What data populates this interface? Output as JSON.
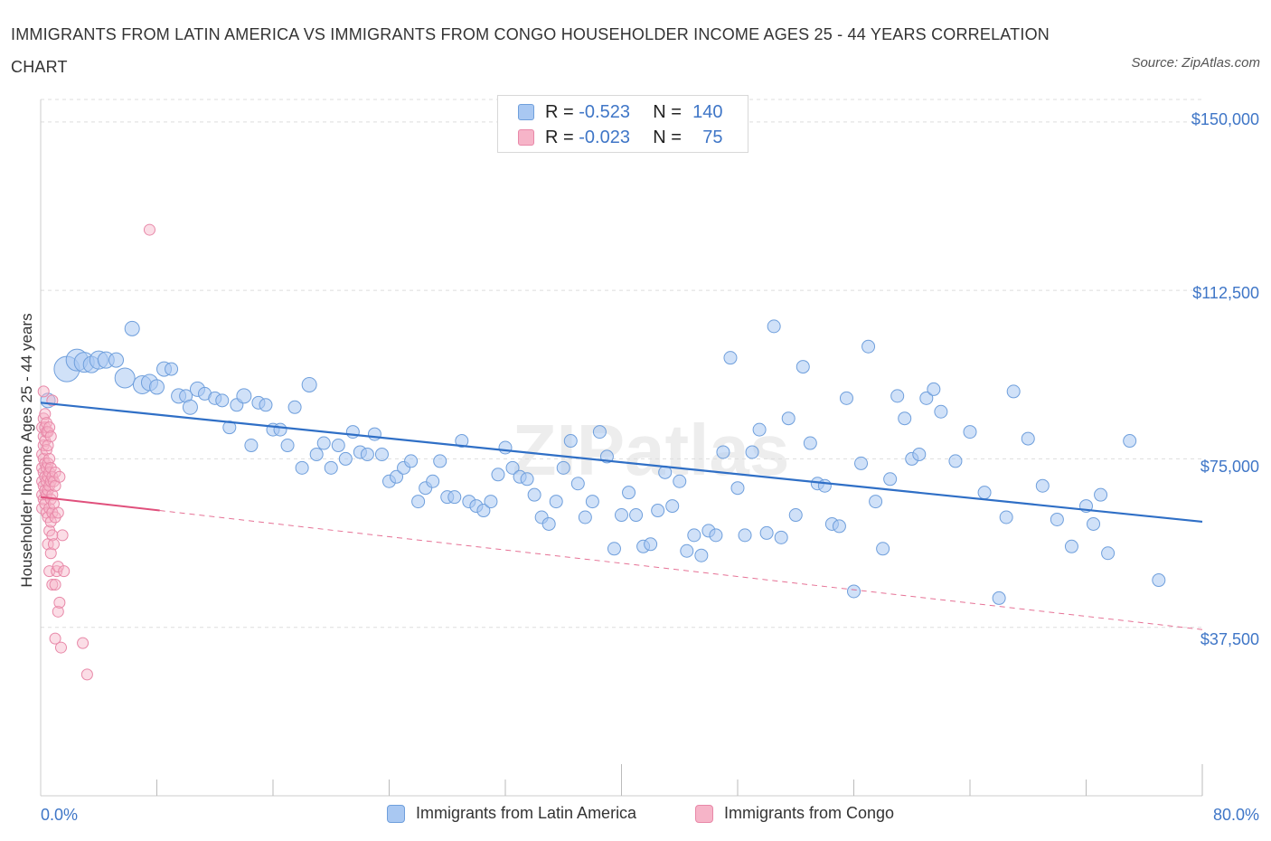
{
  "title": "IMMIGRANTS FROM LATIN AMERICA VS IMMIGRANTS FROM CONGO HOUSEHOLDER INCOME AGES 25 - 44 YEARS CORRELATION CHART",
  "source": "Source: ZipAtlas.com",
  "watermark": "ZIPatlas",
  "legend": [
    {
      "r_label": "R =",
      "r_value": "-0.523",
      "n_label": "N =",
      "n_value": "140"
    },
    {
      "r_label": "R =",
      "r_value": "-0.023",
      "n_label": "N =",
      "n_value": "75"
    }
  ],
  "colors": {
    "blue_fill": "#a9c8f2",
    "blue_stroke": "#6f9fdc",
    "blue_line": "#2f6fc6",
    "pink_fill": "#f6b4c8",
    "pink_stroke": "#e888a8",
    "pink_line": "#e0507c",
    "grid": "#dddddd",
    "tick_text": "#3f76c7"
  },
  "chart_data": {
    "type": "scatter",
    "title": "IMMIGRANTS FROM LATIN AMERICA VS IMMIGRANTS FROM CONGO HOUSEHOLDER INCOME AGES 25 - 44 YEARS CORRELATION CHART",
    "xlabel": "",
    "ylabel": "Householder Income Ages 25 - 44 years",
    "xlim": [
      0,
      80
    ],
    "ylim": [
      0,
      155000
    ],
    "x_tick_labels": [
      "0.0%",
      "80.0%"
    ],
    "y_ticks": [
      37500,
      75000,
      112500,
      150000
    ],
    "y_tick_labels": [
      "$37,500",
      "$75,000",
      "$112,500",
      "$150,000"
    ],
    "grid": "horizontal dashed",
    "legend_position": "bottom",
    "series": [
      {
        "name": "Immigrants from Latin America",
        "trend": {
          "x": [
            0,
            80
          ],
          "y": [
            87500,
            61000
          ],
          "style": "solid"
        },
        "points": [
          [
            0.5,
            88000,
            8
          ],
          [
            1.8,
            95000,
            14
          ],
          [
            2.5,
            97000,
            12
          ],
          [
            3.0,
            96500,
            11
          ],
          [
            3.5,
            96000,
            9
          ],
          [
            4.0,
            97000,
            10
          ],
          [
            4.5,
            97000,
            9
          ],
          [
            5.2,
            97000,
            8
          ],
          [
            5.8,
            93000,
            11
          ],
          [
            6.3,
            104000,
            8
          ],
          [
            7.0,
            91500,
            10
          ],
          [
            7.5,
            92000,
            9
          ],
          [
            8.0,
            91000,
            8
          ],
          [
            8.5,
            95000,
            8
          ],
          [
            9.0,
            95000,
            7
          ],
          [
            9.5,
            89000,
            8
          ],
          [
            10.0,
            89000,
            7
          ],
          [
            10.3,
            86500,
            8
          ],
          [
            10.8,
            90500,
            8
          ],
          [
            11.3,
            89500,
            7
          ],
          [
            12.0,
            88500,
            7
          ],
          [
            12.5,
            88000,
            7
          ],
          [
            13.0,
            82000,
            7
          ],
          [
            13.5,
            87000,
            7
          ],
          [
            14.0,
            89000,
            8
          ],
          [
            14.5,
            78000,
            7
          ],
          [
            15.0,
            87500,
            7
          ],
          [
            15.5,
            87000,
            7
          ],
          [
            16.0,
            81500,
            7
          ],
          [
            16.5,
            81500,
            7
          ],
          [
            17.0,
            78000,
            7
          ],
          [
            17.5,
            86500,
            7
          ],
          [
            18.0,
            73000,
            7
          ],
          [
            18.5,
            91500,
            8
          ],
          [
            19.0,
            76000,
            7
          ],
          [
            19.5,
            78500,
            7
          ],
          [
            20.0,
            73000,
            7
          ],
          [
            20.5,
            78000,
            7
          ],
          [
            21.0,
            75000,
            7
          ],
          [
            21.5,
            81000,
            7
          ],
          [
            22.0,
            76500,
            7
          ],
          [
            22.5,
            76000,
            7
          ],
          [
            23.0,
            80500,
            7
          ],
          [
            23.5,
            76000,
            7
          ],
          [
            24.0,
            70000,
            7
          ],
          [
            24.5,
            71000,
            7
          ],
          [
            25.0,
            73000,
            7
          ],
          [
            25.5,
            74500,
            7
          ],
          [
            26.0,
            65500,
            7
          ],
          [
            26.5,
            68500,
            7
          ],
          [
            27.0,
            70000,
            7
          ],
          [
            27.5,
            74500,
            7
          ],
          [
            28.0,
            66500,
            7
          ],
          [
            28.5,
            66500,
            7
          ],
          [
            29.0,
            79000,
            7
          ],
          [
            29.5,
            65500,
            7
          ],
          [
            30.0,
            64500,
            7
          ],
          [
            30.5,
            63500,
            7
          ],
          [
            31.0,
            65500,
            7
          ],
          [
            31.5,
            71500,
            7
          ],
          [
            32.0,
            77500,
            7
          ],
          [
            32.5,
            73000,
            7
          ],
          [
            33.0,
            71000,
            7
          ],
          [
            33.5,
            70500,
            7
          ],
          [
            34.0,
            67000,
            7
          ],
          [
            34.5,
            62000,
            7
          ],
          [
            35.0,
            60500,
            7
          ],
          [
            35.5,
            65500,
            7
          ],
          [
            36.0,
            73000,
            7
          ],
          [
            36.5,
            79000,
            7
          ],
          [
            37.0,
            69500,
            7
          ],
          [
            37.5,
            62000,
            7
          ],
          [
            38.0,
            65500,
            7
          ],
          [
            38.5,
            81000,
            7
          ],
          [
            39.0,
            75500,
            7
          ],
          [
            39.5,
            55000,
            7
          ],
          [
            40.0,
            62500,
            7
          ],
          [
            40.5,
            67500,
            7
          ],
          [
            41.0,
            62500,
            7
          ],
          [
            41.5,
            55500,
            7
          ],
          [
            42.0,
            56000,
            7
          ],
          [
            42.5,
            63500,
            7
          ],
          [
            43.0,
            72000,
            7
          ],
          [
            43.5,
            64500,
            7
          ],
          [
            44.0,
            70000,
            7
          ],
          [
            44.5,
            54500,
            7
          ],
          [
            45.0,
            58000,
            7
          ],
          [
            45.5,
            53500,
            7
          ],
          [
            46.0,
            59000,
            7
          ],
          [
            46.5,
            58000,
            7
          ],
          [
            47.0,
            76500,
            7
          ],
          [
            47.5,
            97500,
            7
          ],
          [
            48.0,
            68500,
            7
          ],
          [
            48.5,
            58000,
            7
          ],
          [
            49.0,
            76500,
            7
          ],
          [
            49.5,
            81500,
            7
          ],
          [
            50.0,
            58500,
            7
          ],
          [
            50.5,
            104500,
            7
          ],
          [
            51.0,
            57500,
            7
          ],
          [
            51.5,
            84000,
            7
          ],
          [
            52.0,
            62500,
            7
          ],
          [
            52.5,
            95500,
            7
          ],
          [
            53.0,
            78500,
            7
          ],
          [
            53.5,
            69500,
            7
          ],
          [
            54.0,
            69000,
            7
          ],
          [
            54.5,
            60500,
            7
          ],
          [
            55.0,
            60000,
            7
          ],
          [
            55.5,
            88500,
            7
          ],
          [
            56.0,
            45500,
            7
          ],
          [
            56.5,
            74000,
            7
          ],
          [
            57.0,
            100000,
            7
          ],
          [
            57.5,
            65500,
            7
          ],
          [
            58.0,
            55000,
            7
          ],
          [
            58.5,
            70500,
            7
          ],
          [
            59.0,
            89000,
            7
          ],
          [
            59.5,
            84000,
            7
          ],
          [
            60.0,
            75000,
            7
          ],
          [
            60.5,
            76000,
            7
          ],
          [
            61.0,
            88500,
            7
          ],
          [
            61.5,
            90500,
            7
          ],
          [
            62.0,
            85500,
            7
          ],
          [
            63.0,
            74500,
            7
          ],
          [
            64.0,
            81000,
            7
          ],
          [
            65.0,
            67500,
            7
          ],
          [
            66.0,
            44000,
            7
          ],
          [
            66.5,
            62000,
            7
          ],
          [
            67.0,
            90000,
            7
          ],
          [
            68.0,
            79500,
            7
          ],
          [
            69.0,
            69000,
            7
          ],
          [
            70.0,
            61500,
            7
          ],
          [
            71.0,
            55500,
            7
          ],
          [
            72.0,
            64500,
            7
          ],
          [
            72.5,
            60500,
            7
          ],
          [
            73.0,
            67000,
            7
          ],
          [
            73.5,
            54000,
            7
          ],
          [
            75.0,
            79000,
            7
          ],
          [
            77.0,
            48000,
            7
          ]
        ]
      },
      {
        "name": "Immigrants from Congo",
        "trend": {
          "x": [
            0,
            8.2,
            80
          ],
          "y": [
            66500,
            63500,
            37000
          ],
          "style": "solid then dashed"
        },
        "points": [
          [
            0.1,
            82000,
            6
          ],
          [
            0.1,
            76000,
            6
          ],
          [
            0.1,
            73000,
            6
          ],
          [
            0.1,
            70000,
            6
          ],
          [
            0.1,
            67000,
            6
          ],
          [
            0.1,
            64000,
            6
          ],
          [
            0.2,
            90000,
            6
          ],
          [
            0.2,
            84000,
            6
          ],
          [
            0.2,
            80000,
            6
          ],
          [
            0.2,
            78000,
            6
          ],
          [
            0.2,
            75000,
            6
          ],
          [
            0.2,
            72000,
            6
          ],
          [
            0.2,
            69000,
            6
          ],
          [
            0.2,
            66000,
            6
          ],
          [
            0.3,
            85000,
            6
          ],
          [
            0.3,
            82000,
            6
          ],
          [
            0.3,
            79000,
            6
          ],
          [
            0.3,
            74000,
            6
          ],
          [
            0.3,
            71000,
            6
          ],
          [
            0.3,
            68000,
            6
          ],
          [
            0.3,
            65000,
            6
          ],
          [
            0.4,
            83000,
            6
          ],
          [
            0.4,
            81000,
            6
          ],
          [
            0.4,
            77000,
            6
          ],
          [
            0.4,
            73000,
            6
          ],
          [
            0.4,
            70000,
            6
          ],
          [
            0.4,
            67000,
            6
          ],
          [
            0.4,
            63000,
            6
          ],
          [
            0.5,
            81000,
            6
          ],
          [
            0.5,
            78000,
            6
          ],
          [
            0.5,
            74000,
            6
          ],
          [
            0.5,
            71000,
            6
          ],
          [
            0.5,
            68000,
            6
          ],
          [
            0.5,
            62000,
            6
          ],
          [
            0.5,
            56000,
            6
          ],
          [
            0.6,
            82000,
            6
          ],
          [
            0.6,
            75000,
            6
          ],
          [
            0.6,
            72000,
            6
          ],
          [
            0.6,
            69000,
            6
          ],
          [
            0.6,
            64000,
            6
          ],
          [
            0.6,
            59000,
            6
          ],
          [
            0.6,
            50000,
            6
          ],
          [
            0.7,
            80000,
            6
          ],
          [
            0.7,
            73000,
            6
          ],
          [
            0.7,
            70000,
            6
          ],
          [
            0.7,
            66000,
            6
          ],
          [
            0.7,
            61000,
            6
          ],
          [
            0.7,
            54000,
            6
          ],
          [
            0.8,
            88000,
            6
          ],
          [
            0.8,
            71000,
            6
          ],
          [
            0.8,
            67000,
            6
          ],
          [
            0.8,
            63000,
            6
          ],
          [
            0.8,
            58000,
            6
          ],
          [
            0.8,
            47000,
            6
          ],
          [
            0.9,
            70000,
            6
          ],
          [
            0.9,
            65000,
            6
          ],
          [
            0.9,
            56000,
            6
          ],
          [
            1.0,
            72000,
            6
          ],
          [
            1.0,
            69000,
            6
          ],
          [
            1.0,
            62000,
            6
          ],
          [
            1.0,
            47000,
            6
          ],
          [
            1.0,
            35000,
            6
          ],
          [
            1.1,
            50000,
            6
          ],
          [
            1.2,
            63000,
            6
          ],
          [
            1.2,
            51000,
            6
          ],
          [
            1.2,
            41000,
            6
          ],
          [
            1.3,
            71000,
            6
          ],
          [
            1.3,
            43000,
            6
          ],
          [
            1.4,
            33000,
            6
          ],
          [
            1.5,
            58000,
            6
          ],
          [
            1.6,
            50000,
            6
          ],
          [
            2.9,
            34000,
            6
          ],
          [
            3.2,
            27000,
            6
          ],
          [
            7.5,
            126000,
            6
          ]
        ]
      }
    ]
  },
  "x_labels": {
    "left": "0.0%",
    "right": "80.0%"
  },
  "y_labels": [
    "$150,000",
    "$112,500",
    "$75,000",
    "$37,500"
  ],
  "y_axis_title": "Householder Income Ages 25 - 44 years",
  "bottom_legend": [
    "Immigrants from Latin America",
    "Immigrants from Congo"
  ]
}
